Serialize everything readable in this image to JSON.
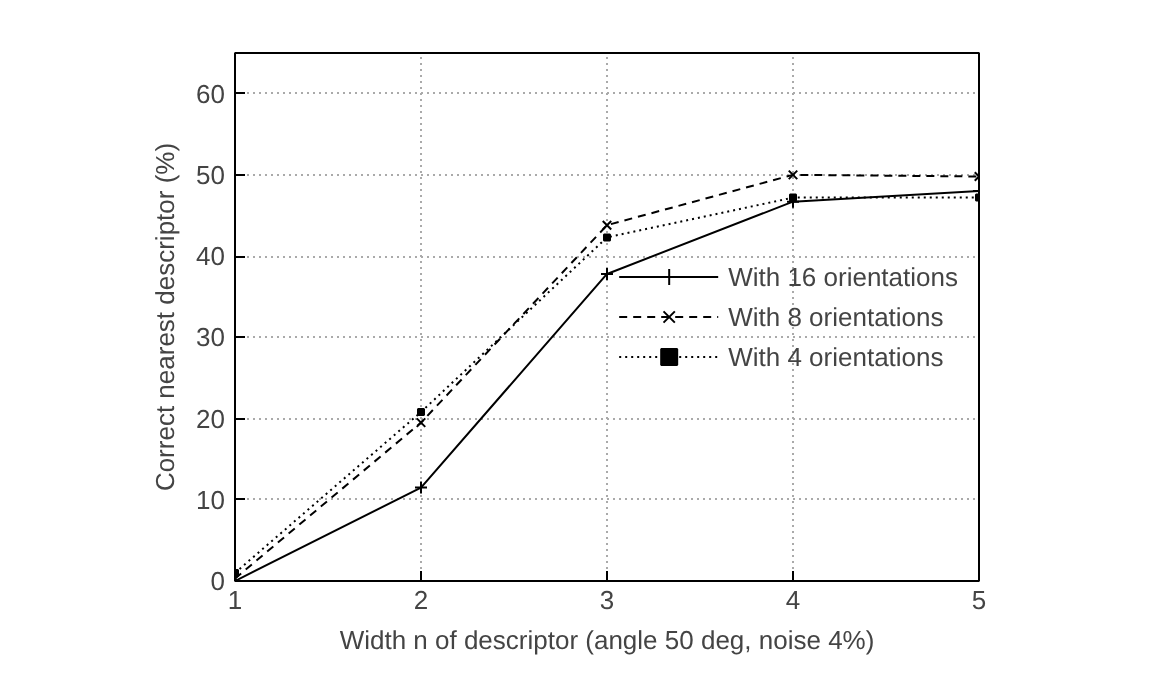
{
  "chart_data": {
    "type": "line",
    "xlabel": "Width n of descriptor (angle 50 deg, noise 4%)",
    "ylabel": "Correct nearest descriptor (%)",
    "x": [
      1,
      2,
      3,
      4,
      5
    ],
    "xlim": [
      1,
      5
    ],
    "xticks": [
      1,
      2,
      3,
      4,
      5
    ],
    "ylim": [
      0,
      65
    ],
    "yticks": [
      0,
      10,
      20,
      30,
      40,
      50,
      60
    ],
    "grid": true,
    "legend": "right",
    "series": [
      {
        "name": "With 16 orientations",
        "color": "#000000",
        "values": [
          0,
          11.5,
          37.8,
          46.7,
          48
        ],
        "marker": "cross",
        "line_style": "solid"
      },
      {
        "name": "With 8 orientations",
        "color": "#000000",
        "values": [
          0.3,
          19.5,
          43.8,
          50,
          49.8
        ],
        "marker": "x",
        "line_style": "dashed"
      },
      {
        "name": "With 4 orientations",
        "color": "#000000",
        "values": [
          1,
          20.8,
          42.3,
          47.2,
          47.2
        ],
        "marker": "square",
        "line_style": "dotted"
      }
    ]
  }
}
